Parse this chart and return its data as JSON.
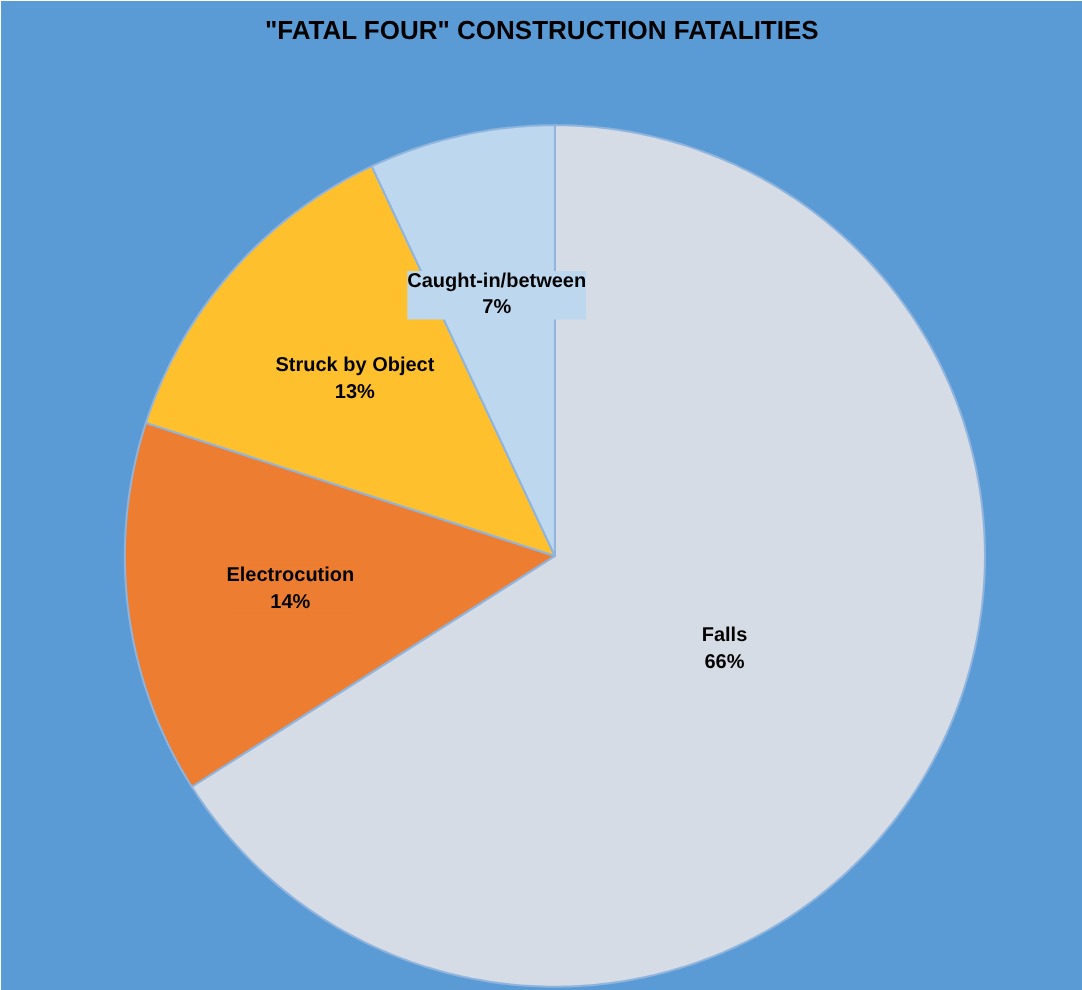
{
  "chart_data": {
    "type": "pie",
    "title": "\"FATAL FOUR\" CONSTRUCTION FATALITIES",
    "categories": [
      "Falls",
      "Electrocution",
      "Struck by Object",
      "Caught-in/between"
    ],
    "values": [
      66,
      14,
      13,
      7
    ],
    "colors": [
      "#d6dce5",
      "#ed7d31",
      "#ffc02e",
      "#bdd7ee"
    ],
    "value_labels": [
      "66%",
      "14%",
      "13%",
      "7%"
    ]
  }
}
